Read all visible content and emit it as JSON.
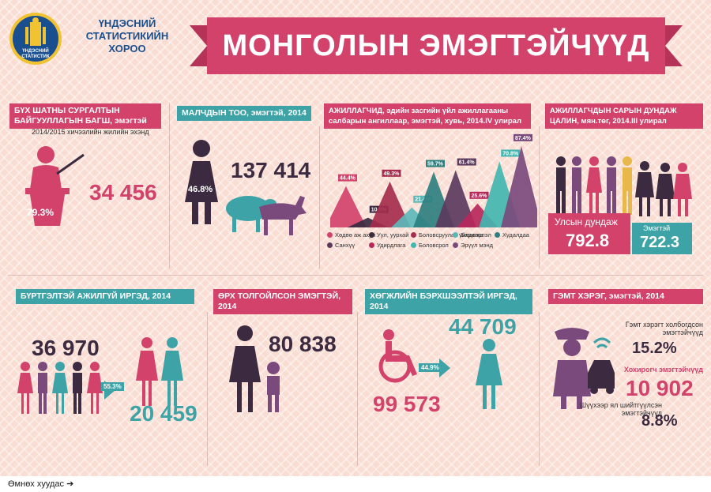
{
  "org": {
    "line1": "ҮНДЭСНИЙ",
    "line2": "СТАТИСТИКИЙН",
    "line3": "ХОРОО",
    "logo_text1": "ҮНДЭСНИЙ",
    "logo_text2": "СТАТИСТИК"
  },
  "title": "МОНГОЛЫН ЭМЭГТЭЙЧҮҮД",
  "colors": {
    "pink": "#d2426b",
    "teal": "#3ea3a6",
    "dark": "#3b2a40",
    "purple": "#7b4a7d",
    "background": "#f9ddd3"
  },
  "teachers": {
    "header": "БҮХ ШАТНЫ СУРГАЛТЫН БАЙГУУЛЛАГЫН БАГШ, эмэгтэй",
    "sub": "2014/2015 хичээлийн жилийн эхэнд",
    "percent": "79.3%",
    "value": "34 456",
    "icon": "teacher-icon"
  },
  "herders": {
    "header": "МАЛЧДЫН ТОО, эмэгтэй, 2014",
    "percent": "46.8%",
    "value": "137 414",
    "icons": [
      "woman-icon",
      "sheep-icon",
      "goat-icon"
    ]
  },
  "employed": {
    "header": "АЖИЛЛАГЧИД, эдийн засгийн үйл ажиллагааны салбарын ангиллаар, эмэгтэй, хувь, 2014.IV улирал",
    "chart_data": {
      "type": "area",
      "categories": [
        "Хөдөө аж ахуй",
        "Уул, уурхай",
        "Боловсруулах үйлдвэрлэл",
        "Барилга",
        "Худалдаа",
        "Санхүү",
        "Удирдлага",
        "Боловсрол",
        "Эрүүл мэнд"
      ],
      "values": [
        44.4,
        10.5,
        49.3,
        21.4,
        59.7,
        61.4,
        25.6,
        70.8,
        87.4
      ],
      "labels": [
        "44.4%",
        "10.5%",
        "49.3%",
        "21.4%",
        "59.7%",
        "61.4%",
        "25.6%",
        "70.8%",
        "87.4%"
      ],
      "colors": [
        "#d2426b",
        "#3b2a40",
        "#a52d4d",
        "#5cb8b8",
        "#2f7f7f",
        "#5b3a5e",
        "#b7285a",
        "#43b6b0",
        "#7b4a7d"
      ],
      "ylim": [
        0,
        100
      ]
    }
  },
  "salary": {
    "header": "АЖИЛЛАГЧДЫН САРЫН ДУНДАЖ ЦАЛИН, мян.төг, 2014.III улирал",
    "national_label": "Улсын дундаж",
    "national_value": "792.8",
    "female_label": "Эмэгтэй",
    "female_value": "722.3"
  },
  "unemployed": {
    "header": "БҮРТГЭЛТЭЙ АЖИЛГҮЙ ИРГЭД, 2014",
    "total": "36 970",
    "percent": "55.3%",
    "female": "20 459"
  },
  "single_mothers": {
    "header": "ӨРХ ТОЛГОЙЛСОН ЭМЭГТЭЙ, 2014",
    "value": "80 838"
  },
  "disabled": {
    "header": "ХӨГЖЛИЙН БЭРХШЭЭЛТЭЙ ИРГЭД, 2014",
    "total": "99 573",
    "percent": "44.9%",
    "female": "44 709"
  },
  "crime": {
    "header": "ГЭМТ ХЭРЭГ, эмэгтэй, 2014",
    "involved_label": "Гэмт хэрэгт холбогдсон эмэгтэйчүүд",
    "involved_value": "15.2%",
    "victims_label": "Хохирогч эмэгтэйчүүд",
    "victims_value": "10 902",
    "convicted_label": "Шүүхээр ял шийтгүүлсэн эмэгтэйчүүд",
    "convicted_value": "8.8%"
  },
  "footer": {
    "prev_page": "Өмнөх хуудас"
  }
}
